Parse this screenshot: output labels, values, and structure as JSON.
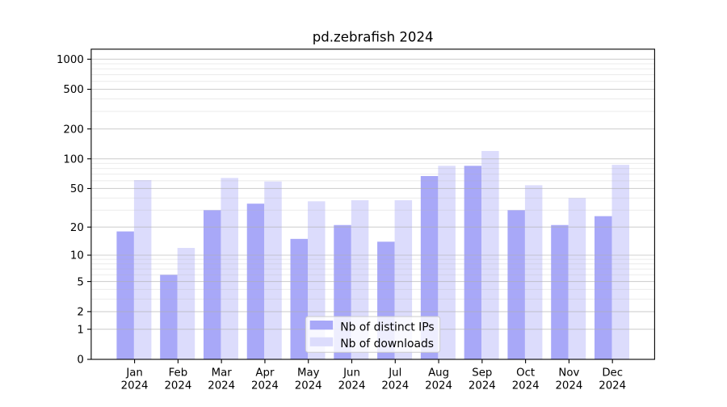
{
  "chart_data": {
    "type": "bar",
    "title": "pd.zebrafish 2024",
    "categories": [
      "Jan",
      "Feb",
      "Mar",
      "Apr",
      "May",
      "Jun",
      "Jul",
      "Aug",
      "Sep",
      "Oct",
      "Nov",
      "Dec"
    ],
    "category_year": "2024",
    "series": [
      {
        "name": "Nb of distinct IPs",
        "color": "#a8a8f8",
        "values": [
          18,
          6,
          30,
          35,
          15,
          21,
          14,
          67,
          85,
          30,
          21,
          26
        ]
      },
      {
        "name": "Nb of downloads",
        "color": "#dcdcfc",
        "values": [
          61,
          12,
          64,
          59,
          37,
          38,
          38,
          85,
          120,
          54,
          40,
          87
        ]
      }
    ],
    "yscale": "log1p",
    "yticks": [
      0,
      1,
      2,
      5,
      10,
      20,
      50,
      100,
      200,
      500,
      1000
    ],
    "ylim": [
      0,
      1258
    ],
    "grid": "both",
    "legend_position": "lower center"
  }
}
